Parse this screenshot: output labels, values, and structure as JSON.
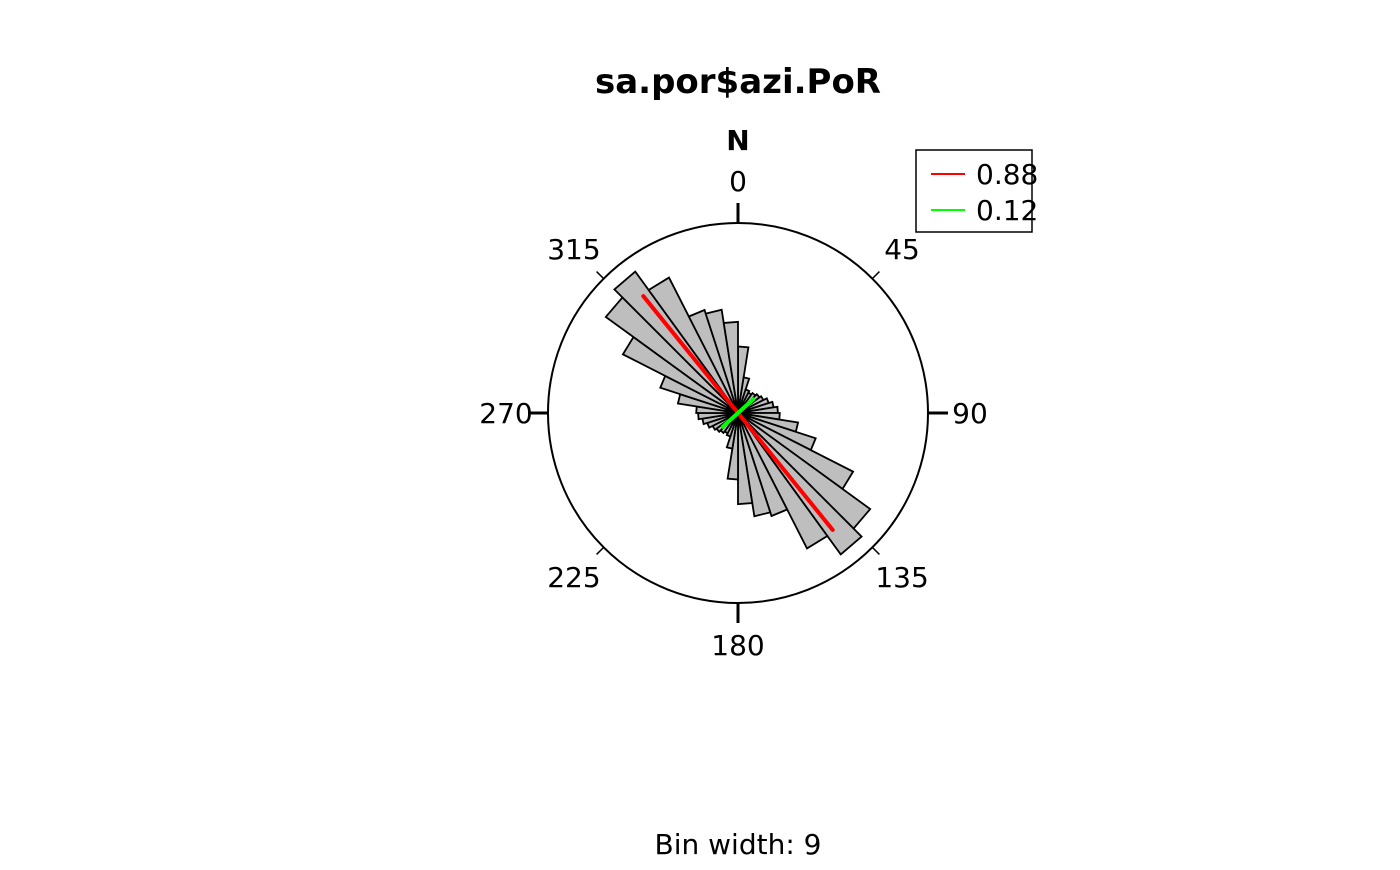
{
  "chart_data": {
    "type": "rose",
    "title": "sa.por$azi.PoR",
    "north_label": "N",
    "subtitle": "Bin width: 9",
    "bin_width": 9,
    "direction_ticks": [
      "0",
      "45",
      "90",
      "135",
      "180",
      "225",
      "270",
      "315"
    ],
    "bar_fill": "#bebebe",
    "bins_relative_radius": [
      0.35,
      0.19,
      0.13,
      0.12,
      0.13,
      0.14,
      0.15,
      0.17,
      0.19,
      0.21,
      0.22,
      0.32,
      0.43,
      0.68,
      0.86,
      0.92,
      0.8,
      0.57,
      0.55,
      0.48,
      0.35,
      0.19,
      0.13,
      0.12,
      0.13,
      0.14,
      0.15,
      0.17,
      0.19,
      0.21,
      0.22,
      0.32,
      0.43,
      0.68,
      0.86,
      0.92,
      0.8,
      0.57,
      0.55,
      0.48
    ],
    "mean_directions": [
      {
        "label": "0.88",
        "azimuth": 141,
        "length": 0.88,
        "color": "#ff0000"
      },
      {
        "label": "0.12",
        "azimuth": 48,
        "length": 0.12,
        "color": "#00ff00"
      }
    ],
    "legend": {
      "placement": "top-right",
      "entries": [
        "0.88",
        "0.12"
      ]
    }
  }
}
